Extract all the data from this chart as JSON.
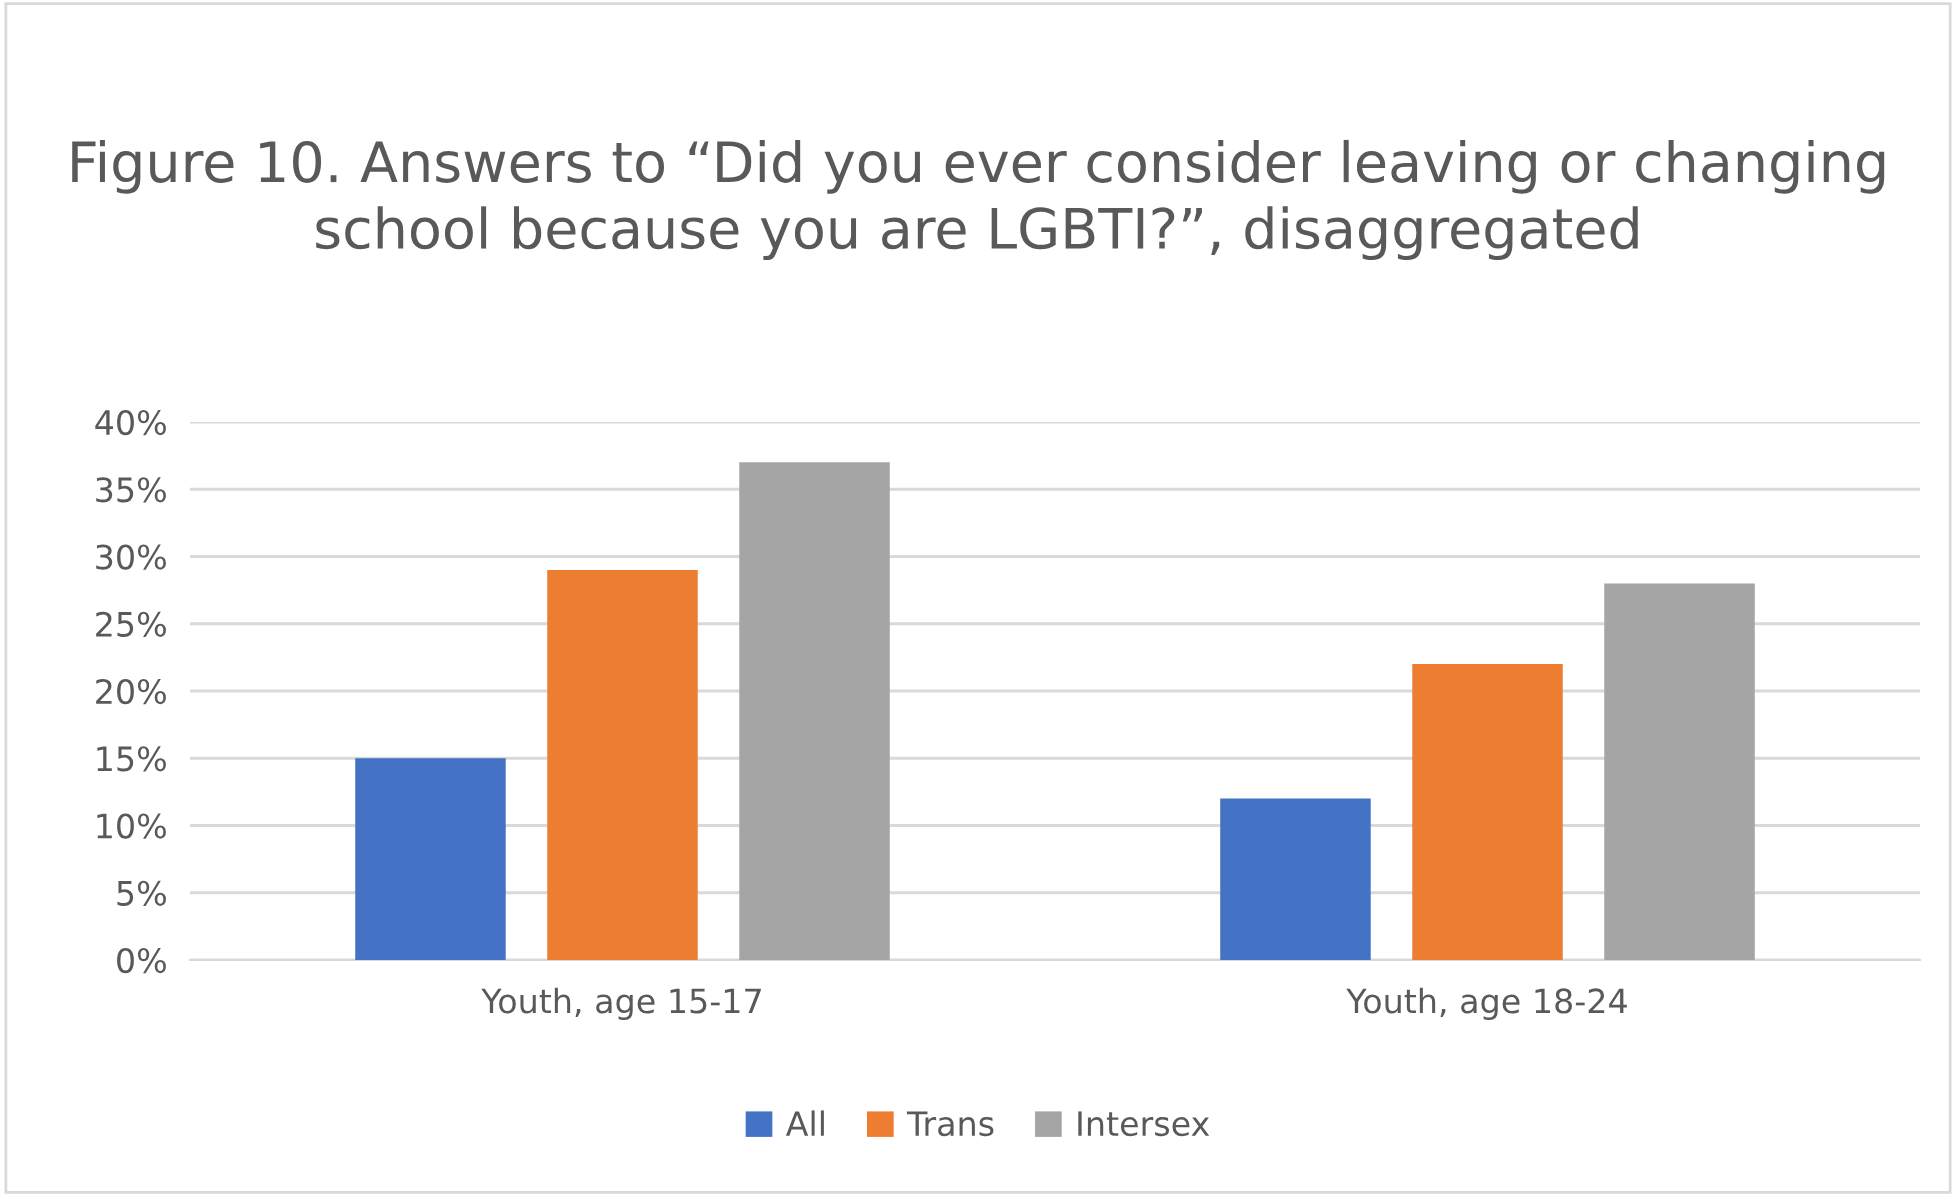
{
  "chart_data": {
    "type": "bar",
    "title": "Figure 10. Answers to “Did you ever consider leaving or changing school because you are LGBTI?”, disaggregated",
    "categories": [
      "Youth, age 15-17",
      "Youth, age 18-24"
    ],
    "series": [
      {
        "name": "All",
        "color": "#4472c4",
        "values": [
          15,
          12
        ]
      },
      {
        "name": "Trans",
        "color": "#ed7d31",
        "values": [
          29,
          22
        ]
      },
      {
        "name": "Intersex",
        "color": "#a5a5a5",
        "values": [
          37,
          28
        ]
      }
    ],
    "ylim": [
      0,
      40
    ],
    "yticks": [
      {
        "value": 0,
        "label": "0%"
      },
      {
        "value": 5,
        "label": "5%"
      },
      {
        "value": 10,
        "label": "10%"
      },
      {
        "value": 15,
        "label": "15%"
      },
      {
        "value": 20,
        "label": "20%"
      },
      {
        "value": 25,
        "label": "25%"
      },
      {
        "value": 30,
        "label": "30%"
      },
      {
        "value": 35,
        "label": "35%"
      },
      {
        "value": 40,
        "label": "40%"
      }
    ],
    "grid": "y",
    "legend": "bottom"
  }
}
